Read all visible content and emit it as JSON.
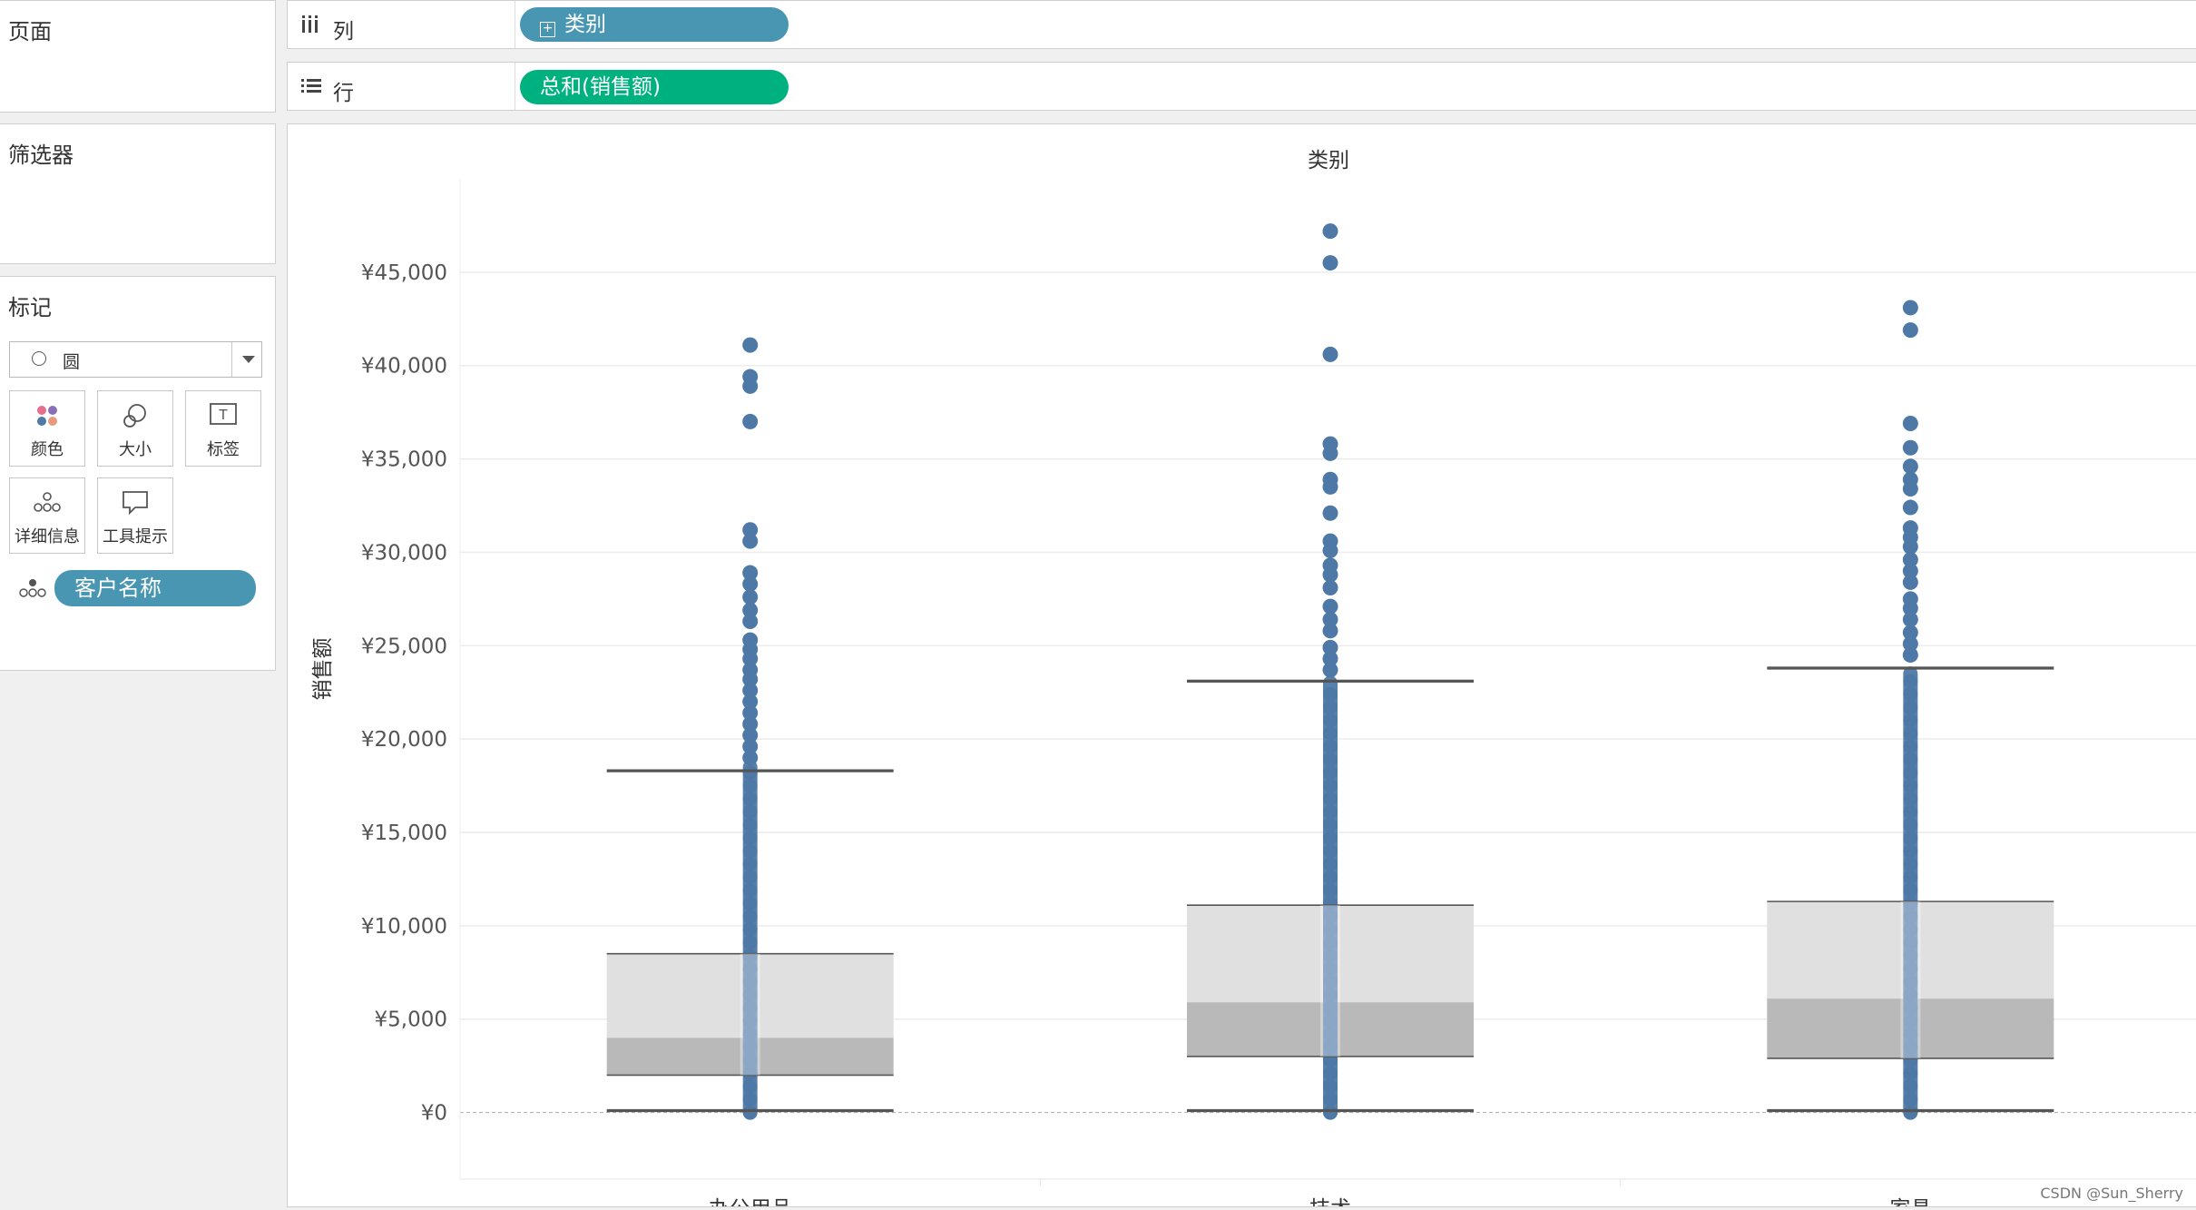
{
  "pages_panel": {
    "title": "页面"
  },
  "columns_shelf": {
    "icon": "columns-icon",
    "label": "列",
    "pill": "类别",
    "pill_color": "#4996b2"
  },
  "rows_shelf": {
    "icon": "rows-icon",
    "label": "行",
    "pill": "总和(销售额)",
    "pill_color": "#00b180"
  },
  "filters_panel": {
    "title": "筛选器"
  },
  "marks_panel": {
    "title": "标记",
    "mark_type": "圆",
    "buttons": {
      "color": "颜色",
      "size": "大小",
      "label": "标签",
      "detail": "详细信息",
      "tooltip": "工具提示"
    },
    "detail_pill": "客户名称",
    "detail_pill_color": "#4996b2"
  },
  "watermark": "CSDN @Sun_Sherry",
  "chart_data": {
    "type": "scatter",
    "title": "类别",
    "xlabel": "",
    "ylabel": "销售额",
    "categories": [
      "办公用品",
      "技术",
      "家具"
    ],
    "ylim": [
      -2500,
      50000
    ],
    "y_ticks": [
      0,
      5000,
      10000,
      15000,
      20000,
      25000,
      30000,
      35000,
      40000,
      45000
    ],
    "y_tick_labels": [
      "¥0",
      "¥5,000",
      "¥10,000",
      "¥15,000",
      "¥20,000",
      "¥25,000",
      "¥30,000",
      "¥35,000",
      "¥40,000",
      "¥45,000"
    ],
    "grid": true,
    "point_color": "#4e79a7",
    "boxplots": [
      {
        "category": "办公用品",
        "lower_whisker": 100,
        "q1": 2000,
        "median": 4000,
        "q3": 8500,
        "upper_whisker": 18300
      },
      {
        "category": "技术",
        "lower_whisker": 100,
        "q1": 3000,
        "median": 5900,
        "q3": 11100,
        "upper_whisker": 23100
      },
      {
        "category": "家具",
        "lower_whisker": 100,
        "q1": 2900,
        "median": 6100,
        "q3": 11300,
        "upper_whisker": 23800
      }
    ],
    "series": [
      {
        "category": "办公用品",
        "dense_range": [
          0,
          18500
        ],
        "outliers": [
          41100,
          39400,
          38900,
          37000,
          31200,
          30600,
          28900,
          28300,
          27600,
          26900,
          26300,
          25300,
          24800,
          24300,
          23700,
          23200,
          22600,
          22000,
          21400,
          20800,
          20200,
          19600,
          19000
        ]
      },
      {
        "category": "技术",
        "dense_range": [
          0,
          23000
        ],
        "outliers": [
          47200,
          45500,
          40600,
          35800,
          35300,
          33900,
          33500,
          32100,
          30600,
          30100,
          29300,
          28800,
          28100,
          27100,
          26400,
          25800,
          24900,
          24300,
          23700
        ]
      },
      {
        "category": "家具",
        "dense_range": [
          0,
          23500
        ],
        "outliers": [
          43100,
          41900,
          36900,
          35600,
          34600,
          33900,
          33400,
          32400,
          31300,
          30800,
          30300,
          29600,
          29000,
          28400,
          27500,
          27000,
          26400,
          25700,
          25100,
          24500
        ]
      }
    ]
  }
}
